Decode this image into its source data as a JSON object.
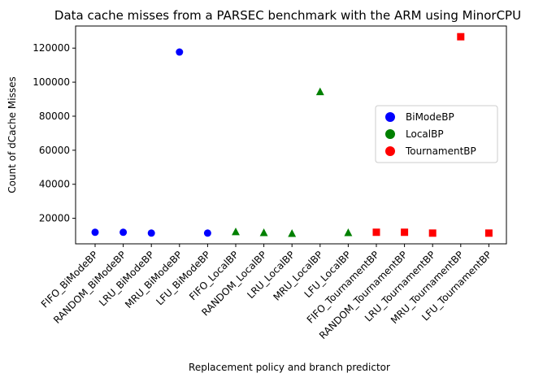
{
  "chart_data": {
    "type": "scatter",
    "title": "Data cache misses from a PARSEC benchmark with the ARM using MinorCPU",
    "xlabel": "Replacement policy and branch predictor",
    "ylabel": "Count of dCache Misses",
    "categories": [
      "FIFO_BiModeBP",
      "RANDOM_BiModeBP",
      "LRU_BiModeBP",
      "MRU_BiModeBP",
      "LFU_BiModeBP",
      "FIFO_LocalBP",
      "RANDOM_LocalBP",
      "LRU_LocalBP",
      "MRU_LocalBP",
      "LFU_LocalBP",
      "FIFO_TournamentBP",
      "RANDOM_TournamentBP",
      "LRU_TournamentBP",
      "MRU_TournamentBP",
      "LFU_TournamentBP"
    ],
    "ylim": [
      5000,
      133000
    ],
    "yticks": [
      20000,
      40000,
      60000,
      80000,
      100000,
      120000
    ],
    "ytick_labels": [
      "20000",
      "40000",
      "60000",
      "80000",
      "100000",
      "120000"
    ],
    "grid": false,
    "legend_position": "center-right",
    "series": [
      {
        "name": "BiModeBP",
        "color": "#0000ff",
        "marker": "circle",
        "points": [
          {
            "x": "FIFO_BiModeBP",
            "y": 11800
          },
          {
            "x": "RANDOM_BiModeBP",
            "y": 11800
          },
          {
            "x": "LRU_BiModeBP",
            "y": 11300
          },
          {
            "x": "MRU_BiModeBP",
            "y": 117700
          },
          {
            "x": "LFU_BiModeBP",
            "y": 11300
          }
        ]
      },
      {
        "name": "LocalBP",
        "color": "#008000",
        "marker": "triangle",
        "points": [
          {
            "x": "FIFO_LocalBP",
            "y": 12000
          },
          {
            "x": "RANDOM_LocalBP",
            "y": 11500
          },
          {
            "x": "LRU_LocalBP",
            "y": 11000
          },
          {
            "x": "MRU_LocalBP",
            "y": 94300
          },
          {
            "x": "LFU_LocalBP",
            "y": 11500
          }
        ]
      },
      {
        "name": "TournamentBP",
        "color": "#ff0000",
        "marker": "square",
        "points": [
          {
            "x": "FIFO_TournamentBP",
            "y": 11800
          },
          {
            "x": "RANDOM_TournamentBP",
            "y": 11800
          },
          {
            "x": "LRU_TournamentBP",
            "y": 11300
          },
          {
            "x": "MRU_TournamentBP",
            "y": 126700
          },
          {
            "x": "LFU_TournamentBP",
            "y": 11300
          }
        ]
      }
    ]
  }
}
